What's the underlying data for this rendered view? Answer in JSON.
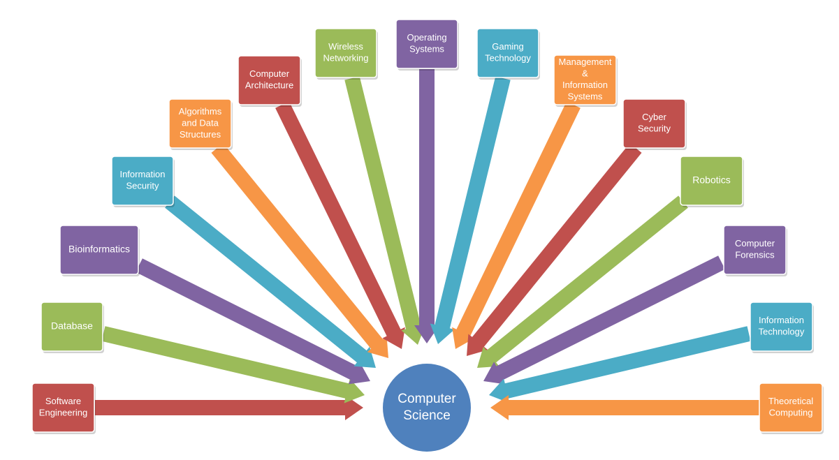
{
  "center": {
    "lines": [
      "Computer",
      "Science"
    ],
    "color": "#4f81bd"
  },
  "palette": {
    "red": "#c0504d",
    "green": "#9bbb59",
    "purple": "#8064a2",
    "blue": "#4bacc6",
    "orange": "#f79646"
  },
  "topics": [
    {
      "id": "software-engineering",
      "lines": [
        "Software",
        "Engineering"
      ],
      "color": "#c0504d"
    },
    {
      "id": "database",
      "lines": [
        "Database"
      ],
      "color": "#9bbb59"
    },
    {
      "id": "bioinformatics",
      "lines": [
        "Bioinformatics"
      ],
      "color": "#8064a2"
    },
    {
      "id": "information-security",
      "lines": [
        "Information",
        "Security"
      ],
      "color": "#4bacc6"
    },
    {
      "id": "algorithms-and-data-structures",
      "lines": [
        "Algorithms",
        "and Data",
        "Structures"
      ],
      "color": "#f79646"
    },
    {
      "id": "computer-architecture",
      "lines": [
        "Computer",
        "Architecture"
      ],
      "color": "#c0504d"
    },
    {
      "id": "wireless-networking",
      "lines": [
        "Wireless",
        "Networking"
      ],
      "color": "#9bbb59"
    },
    {
      "id": "operating-systems",
      "lines": [
        "Operating",
        "Systems"
      ],
      "color": "#8064a2"
    },
    {
      "id": "gaming-technology",
      "lines": [
        "Gaming",
        "Technology"
      ],
      "color": "#4bacc6"
    },
    {
      "id": "management-information-systems",
      "lines": [
        "Management",
        "&",
        "Information",
        "Systems"
      ],
      "color": "#f79646"
    },
    {
      "id": "cyber-security",
      "lines": [
        "Cyber",
        "Security"
      ],
      "color": "#c0504d"
    },
    {
      "id": "robotics",
      "lines": [
        "Robotics"
      ],
      "color": "#9bbb59"
    },
    {
      "id": "computer-forensics",
      "lines": [
        "Computer",
        "Forensics"
      ],
      "color": "#8064a2"
    },
    {
      "id": "information-technology",
      "lines": [
        "Information",
        "Technology"
      ],
      "color": "#4bacc6"
    },
    {
      "id": "theoretical-computing",
      "lines": [
        "Theoretical",
        "Computing"
      ],
      "color": "#f79646"
    }
  ]
}
